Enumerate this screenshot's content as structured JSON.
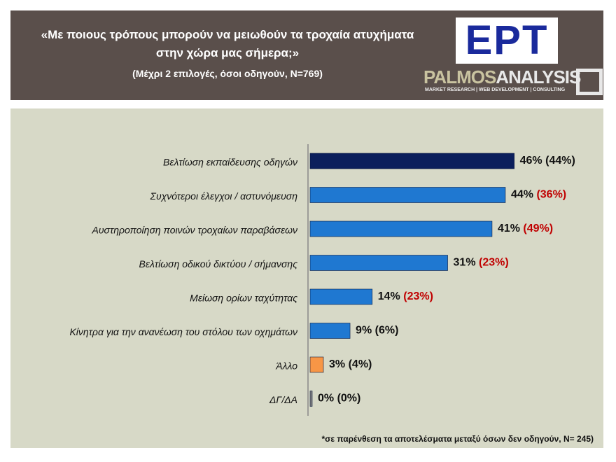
{
  "header": {
    "title": "«Με ποιους τρόπους μπορούν να μειωθούν τα τροχαία ατυχήματα στην χώρα μας σήμερα;»",
    "subtitle": "(Μέχρι 2 επιλογές, όσοι οδηγούν, N=769)",
    "logo": "ΕΡΤ",
    "brand_a": "PALMOS",
    "brand_b": "ANALYSIS",
    "brand_tagline": "MARKET RESEARCH | WEB DEVELOPMENT | CONSULTING"
  },
  "chart_data": {
    "type": "hbar",
    "categories": [
      "Βελτίωση εκπαίδευσης οδηγών",
      "Συχνότεροι έλεγχοι / αστυνόμευση",
      "Αυστηροποίηση ποινών τροχαίων παραβάσεων",
      "Βελτίωση οδικού δικτύου / σήμανσης",
      "Μείωση ορίων ταχύτητας",
      "Κίνητρα για την ανανέωση του στόλου των οχημάτων",
      "Άλλο",
      "ΔΓ/ΔΑ"
    ],
    "values": [
      46,
      44,
      41,
      31,
      14,
      9,
      3,
      0
    ],
    "value_labels": [
      "46%",
      "44%",
      "41%",
      "31%",
      "14%",
      "9%",
      "3%",
      "0%"
    ],
    "colors": [
      "#0b1f5c",
      "#1f78d1",
      "#1f78d1",
      "#1f78d1",
      "#1f78d1",
      "#1f78d1",
      "#f79646",
      "#7f7f7f"
    ],
    "secondary_values": [
      44,
      36,
      49,
      23,
      23,
      6,
      4,
      0
    ],
    "secondary_value_labels": [
      "(44%)",
      "(36%)",
      "(49%)",
      "(23%)",
      "(23%)",
      "(6%)",
      "(4%)",
      "(0%)"
    ],
    "secondary_label_colors": [
      "#111111",
      "#c00000",
      "#c00000",
      "#c00000",
      "#c00000",
      "#111111",
      "#111111",
      "#111111"
    ],
    "xlim": [
      0,
      50
    ],
    "footnote": "*σε παρένθεση τα αποτελέσματα μεταξύ όσων δεν οδηγούν, N= 245)"
  }
}
